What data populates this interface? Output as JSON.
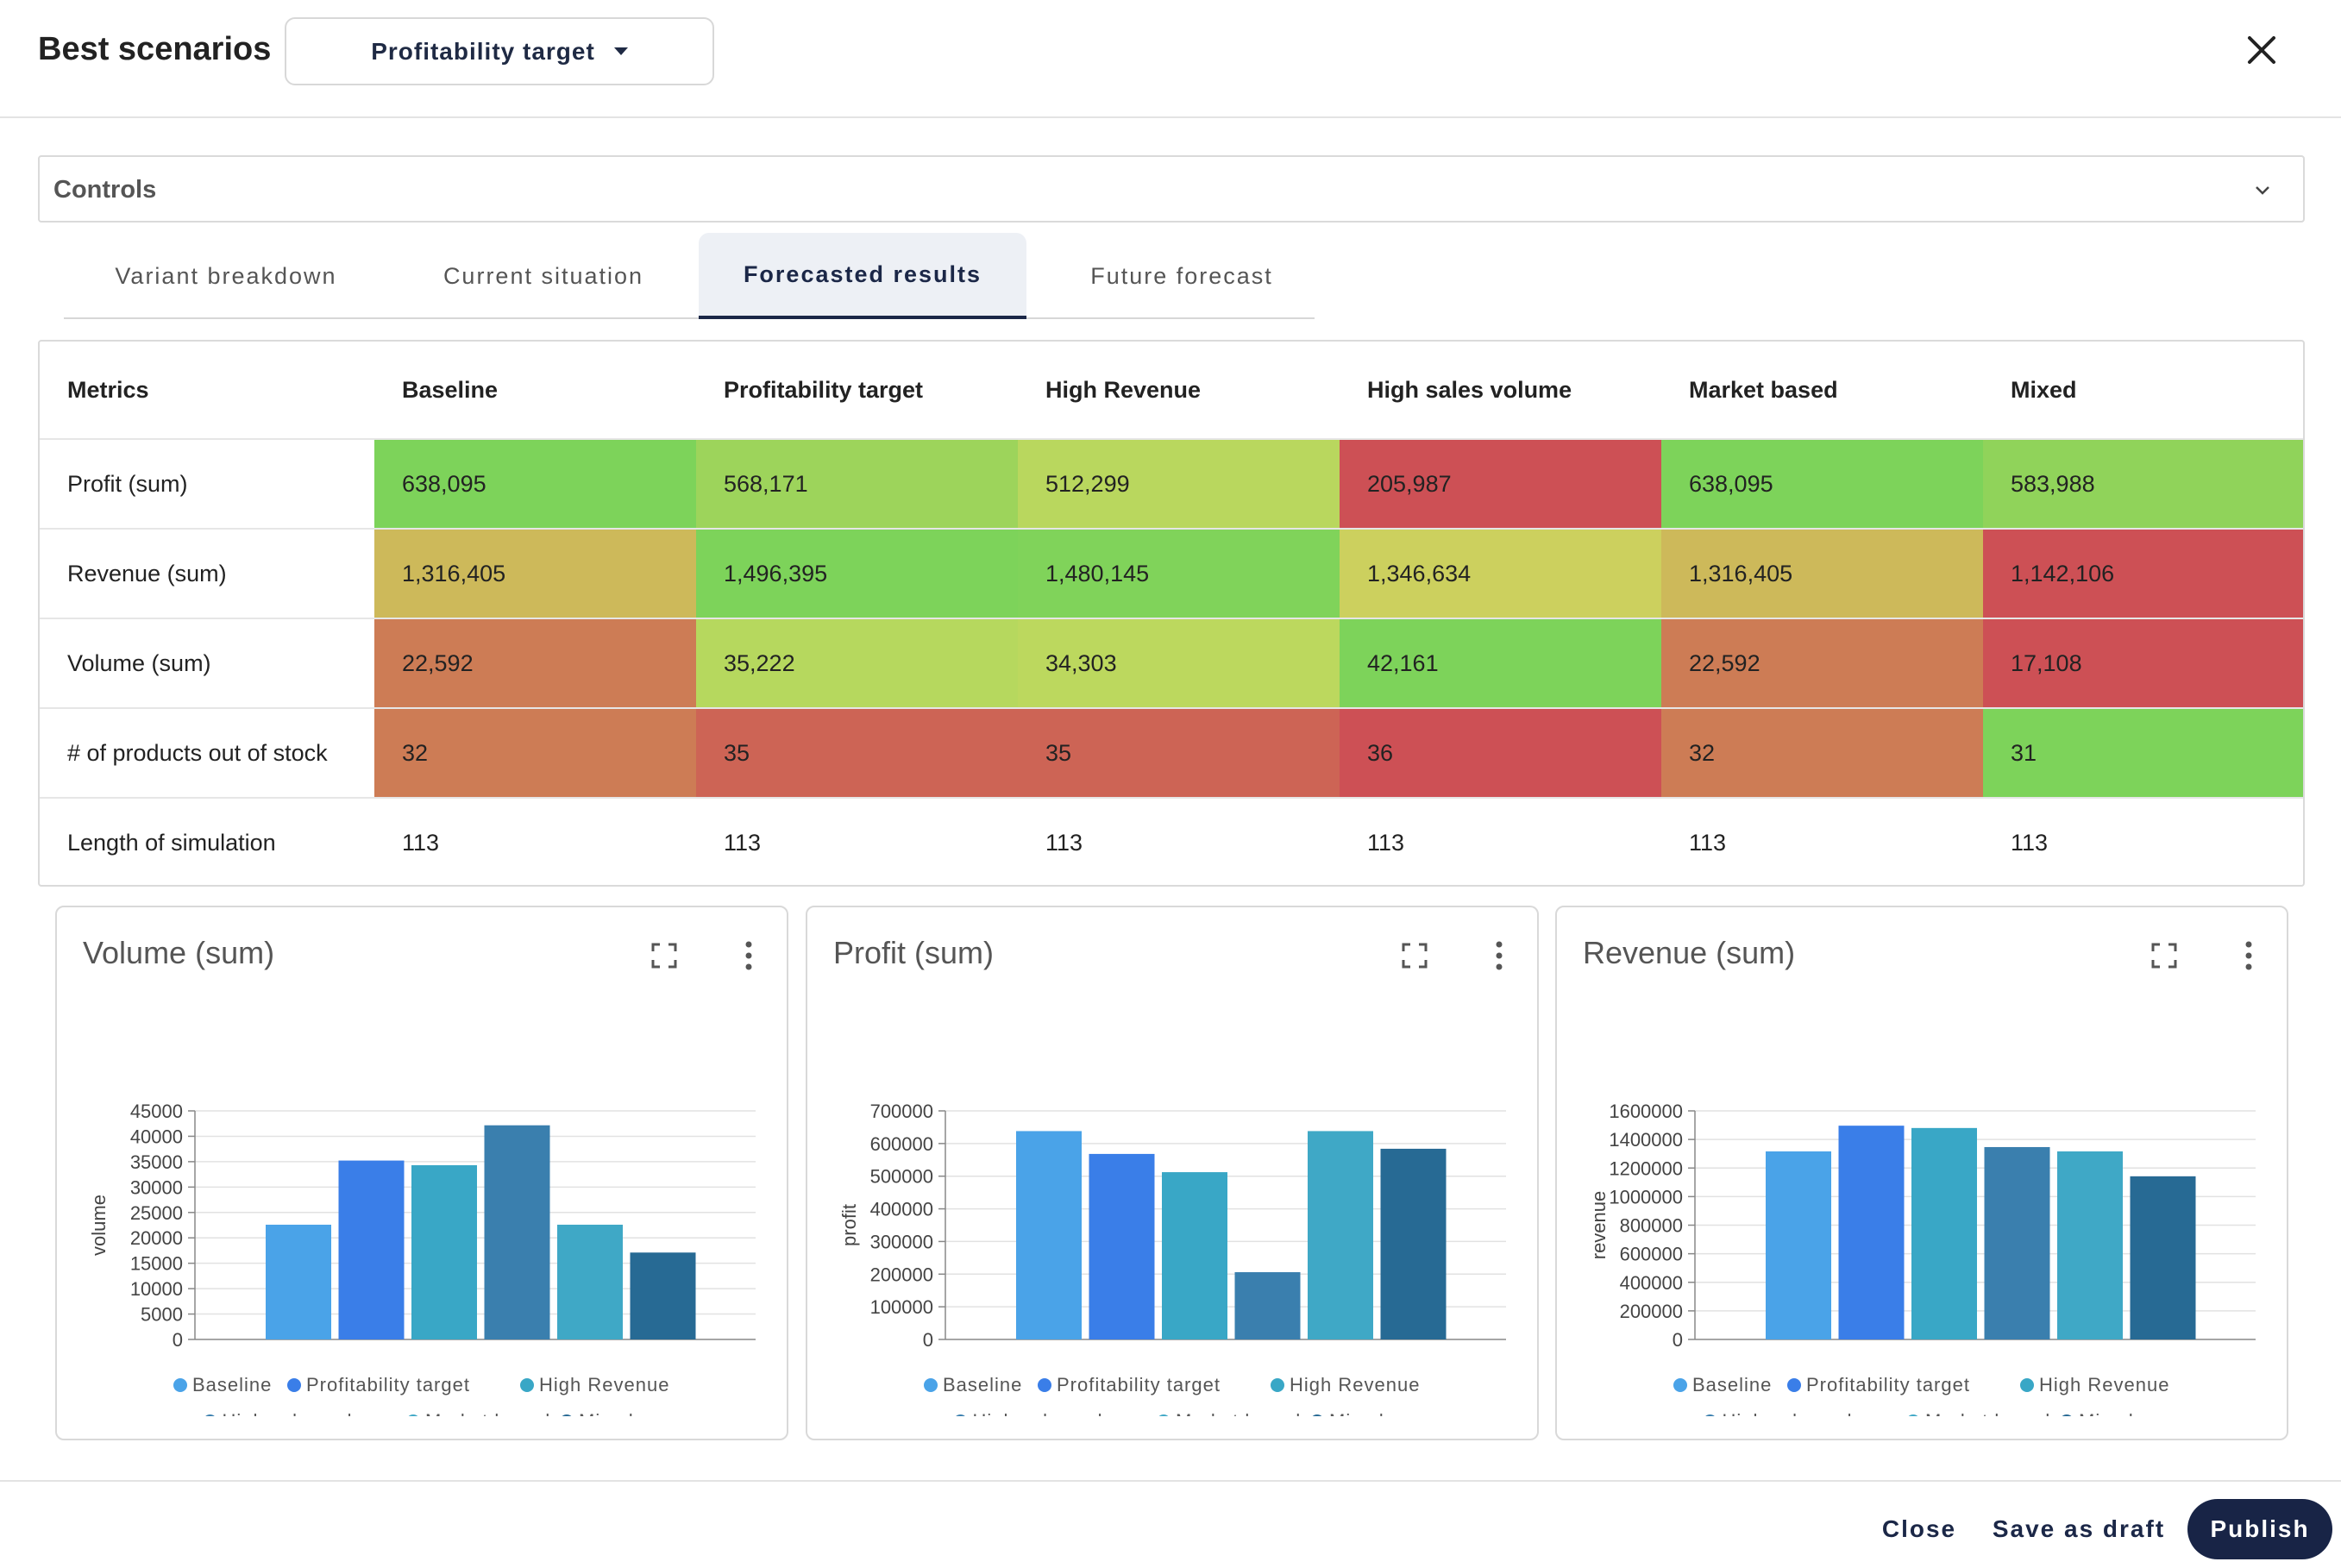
{
  "header": {
    "title": "Best scenarios",
    "scenario_select": "Profitability target"
  },
  "controls": {
    "label": "Controls"
  },
  "tabs": [
    {
      "label": "Variant breakdown",
      "active": false
    },
    {
      "label": "Current situation",
      "active": false
    },
    {
      "label": "Forecasted results",
      "active": true
    },
    {
      "label": "Future forecast",
      "active": false
    }
  ],
  "metrics_table": {
    "headers": [
      "Metrics",
      "Baseline",
      "Profitability target",
      "High Revenue",
      "High sales volume",
      "Market based",
      "Mixed"
    ],
    "rows": [
      {
        "label": "Profit (sum)",
        "cells": [
          "638,095",
          "568,171",
          "512,299",
          "205,987",
          "638,095",
          "583,988"
        ],
        "colors": [
          "#7dd35a",
          "#9dd45b",
          "#b9d75e",
          "#cd5055",
          "#7dd35a",
          "#90d35a"
        ]
      },
      {
        "label": "Revenue (sum)",
        "cells": [
          "1,316,405",
          "1,496,395",
          "1,480,145",
          "1,346,634",
          "1,316,405",
          "1,142,106"
        ],
        "colors": [
          "#cdb95a",
          "#7dd35a",
          "#80d35a",
          "#ccd05e",
          "#cdb95a",
          "#cd5055"
        ]
      },
      {
        "label": "Volume (sum)",
        "cells": [
          "22,592",
          "35,222",
          "34,303",
          "42,161",
          "22,592",
          "17,108"
        ],
        "colors": [
          "#cd7c55",
          "#b6d85e",
          "#bcd85e",
          "#7dd35a",
          "#cd7c55",
          "#cd5055"
        ]
      },
      {
        "label": "# of products out of stock",
        "cells": [
          "32",
          "35",
          "35",
          "36",
          "32",
          "31"
        ],
        "colors": [
          "#cd7c55",
          "#cd6455",
          "#cd6455",
          "#cd5055",
          "#cd7c55",
          "#7dd35a"
        ]
      },
      {
        "label": "Length of simulation",
        "cells": [
          "113",
          "113",
          "113",
          "113",
          "113",
          "113"
        ],
        "colors": [
          "#ffffff",
          "#ffffff",
          "#ffffff",
          "#ffffff",
          "#ffffff",
          "#ffffff"
        ]
      }
    ]
  },
  "chart_data": [
    {
      "type": "bar",
      "title": "Volume (sum)",
      "ylabel": "volume",
      "categories": [
        "Baseline",
        "Profitability target",
        "High Revenue",
        "High sales volume",
        "Market based",
        "Mixed"
      ],
      "values": [
        22592,
        35222,
        34303,
        42161,
        22592,
        17108
      ],
      "ylim": [
        0,
        45000
      ],
      "ticks": [
        "0",
        "5000",
        "10000",
        "15000",
        "20000",
        "25000",
        "30000",
        "35000",
        "40000",
        "45000"
      ],
      "tick_values": [
        0,
        5000,
        10000,
        15000,
        20000,
        25000,
        30000,
        35000,
        40000,
        45000
      ],
      "legend": [
        "Baseline",
        "Profitability target",
        "High Revenue",
        "High sales volume",
        "Market based",
        "Mixed"
      ]
    },
    {
      "type": "bar",
      "title": "Profit (sum)",
      "ylabel": "profit",
      "categories": [
        "Baseline",
        "Profitability target",
        "High Revenue",
        "High sales volume",
        "Market based",
        "Mixed"
      ],
      "values": [
        638095,
        568171,
        512299,
        205987,
        638095,
        583988
      ],
      "ylim": [
        0,
        700000
      ],
      "ticks": [
        "0",
        "100000",
        "200000",
        "300000",
        "400000",
        "500000",
        "600000",
        "700000"
      ],
      "tick_values": [
        0,
        100000,
        200000,
        300000,
        400000,
        500000,
        600000,
        700000
      ],
      "legend": [
        "Baseline",
        "Profitability target",
        "High Revenue",
        "High sales volume",
        "Market based",
        "Mixed"
      ]
    },
    {
      "type": "bar",
      "title": "Revenue (sum)",
      "ylabel": "revenue",
      "categories": [
        "Baseline",
        "Profitability target",
        "High Revenue",
        "High sales volume",
        "Market based",
        "Mixed"
      ],
      "values": [
        1316405,
        1496395,
        1480145,
        1346634,
        1316405,
        1142106
      ],
      "ylim": [
        0,
        1600000
      ],
      "ticks": [
        "0",
        "200000",
        "400000",
        "600000",
        "800000",
        "1000000",
        "1200000",
        "1400000",
        "1600000"
      ],
      "tick_values": [
        0,
        200000,
        400000,
        600000,
        800000,
        1000000,
        1200000,
        1400000,
        1600000
      ],
      "legend": [
        "Baseline",
        "Profitability target",
        "High Revenue",
        "High sales volume",
        "Market based",
        "Mixed"
      ]
    }
  ],
  "series_colors": [
    "#4aa3e8",
    "#3a7ee8",
    "#39a7c6",
    "#3a7fae",
    "#3fa8c6",
    "#276a94"
  ],
  "footer": {
    "close": "Close",
    "save_draft": "Save as draft",
    "publish": "Publish"
  }
}
